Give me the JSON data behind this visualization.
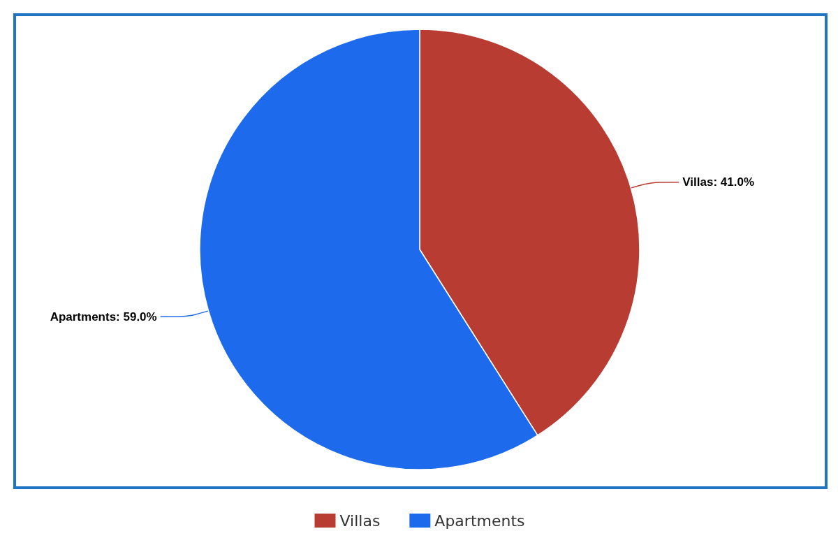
{
  "chart_data": {
    "type": "pie",
    "categories": [
      "Villas",
      "Apartments"
    ],
    "values": [
      41.0,
      59.0
    ],
    "value_labels": [
      "Villas: 41.0%",
      "Apartments: 59.0%"
    ],
    "colors": [
      "#b83c32",
      "#1d6bec"
    ],
    "legend": "bottom"
  }
}
